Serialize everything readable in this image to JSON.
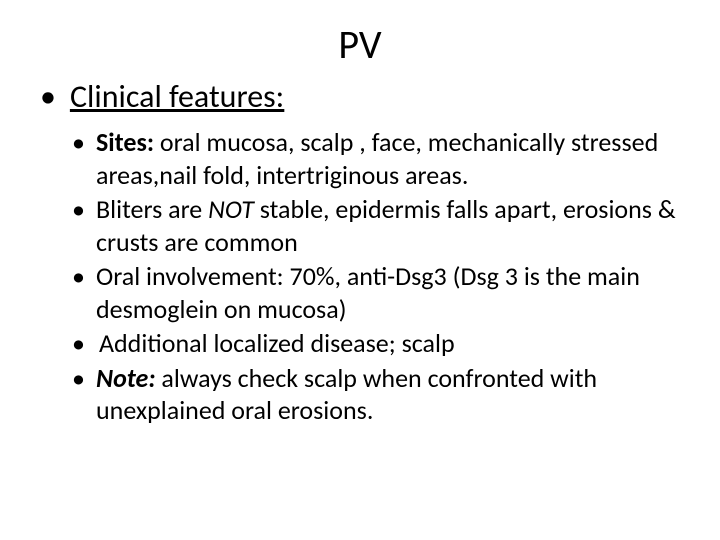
{
  "slide": {
    "title": "PV",
    "title_fontsize": 40,
    "background_color": "#ffffff",
    "text_color": "#000000",
    "level1": {
      "bullet_char": "•",
      "fontsize": 32,
      "items": [
        {
          "runs": [
            {
              "text": "Clinical features:",
              "bold": false,
              "italic": false,
              "underline": true
            }
          ]
        }
      ]
    },
    "level2": {
      "bullet_char": "•",
      "fontsize": 26,
      "items": [
        {
          "runs": [
            {
              "text": "Sites:",
              "bold": true,
              "italic": false
            },
            {
              "text": " oral mucosa, scalp , face, mechanically stressed areas,nail fold, intertriginous areas.",
              "bold": false,
              "italic": false
            }
          ]
        },
        {
          "runs": [
            {
              "text": "Bliters are ",
              "bold": false,
              "italic": false
            },
            {
              "text": "NOT",
              "bold": false,
              "italic": true
            },
            {
              "text": " stable, epidermis falls apart, erosions & crusts are common",
              "bold": false,
              "italic": false
            }
          ]
        },
        {
          "runs": [
            {
              "text": "Oral involvement: 70%, anti-Dsg3 (Dsg 3 is the main desmoglein on mucosa)",
              "bold": false,
              "italic": false
            }
          ]
        },
        {
          "runs": [
            {
              "text": "Additional localized disease; scalp",
              "bold": false,
              "italic": false
            }
          ]
        },
        {
          "runs": [
            {
              "text": "Note:",
              "bold": true,
              "italic": true
            },
            {
              "text": " always check scalp when confronted with unexplained oral erosions.",
              "bold": false,
              "italic": false
            }
          ]
        }
      ]
    }
  }
}
